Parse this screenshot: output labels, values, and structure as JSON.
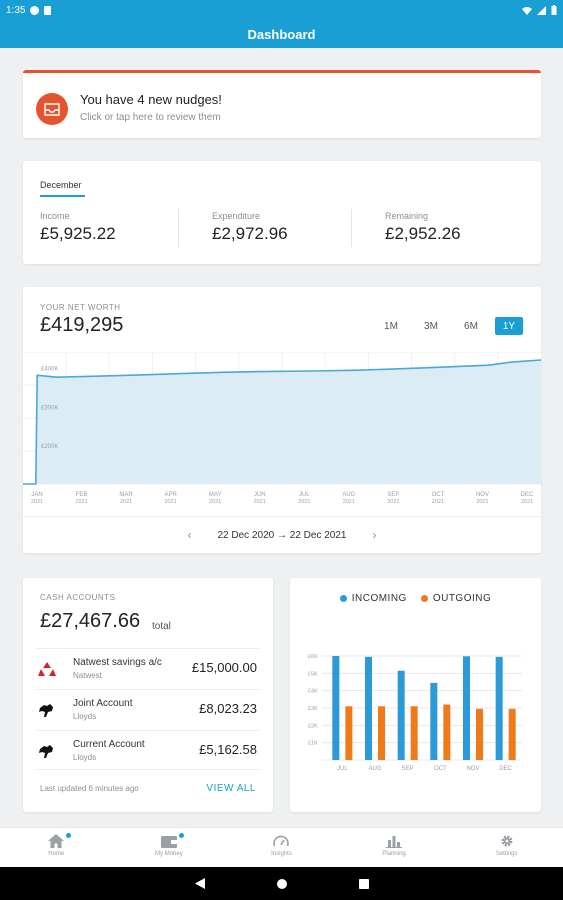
{
  "statusbar": {
    "time": "1:35"
  },
  "appbar": {
    "title": "Dashboard"
  },
  "nudges": {
    "title": "You have 4 new nudges!",
    "subtitle": "Click or tap here to review them",
    "icon": "inbox-icon"
  },
  "month_summary": {
    "tab": "December",
    "income": {
      "label": "Income",
      "value": "£5,925.22"
    },
    "expenditure": {
      "label": "Expenditure",
      "value": "£2,972.96"
    },
    "remaining": {
      "label": "Remaining",
      "value": "£2,952.26"
    }
  },
  "net_worth": {
    "label": "YOUR NET WORTH",
    "value": "£419,295",
    "ranges": [
      "1M",
      "3M",
      "6M",
      "1Y"
    ],
    "active_range": "1Y",
    "period": "22 Dec 2020 → 22 Dec 2021",
    "chart_data": {
      "type": "area",
      "y_ticks": [
        "£400K",
        "£300K",
        "£200K"
      ],
      "x_ticks": [
        {
          "m": "JAN",
          "y": "2021"
        },
        {
          "m": "FEB",
          "y": "2021"
        },
        {
          "m": "MAR",
          "y": "2021"
        },
        {
          "m": "APR",
          "y": "2021"
        },
        {
          "m": "MAY",
          "y": "2021"
        },
        {
          "m": "JUN",
          "y": "2021"
        },
        {
          "m": "JUL",
          "y": "2021"
        },
        {
          "m": "AUG",
          "y": "2021"
        },
        {
          "m": "SEP",
          "y": "2021"
        },
        {
          "m": "OCT",
          "y": "2021"
        },
        {
          "m": "NOV",
          "y": "2021"
        },
        {
          "m": "DEC",
          "y": "2021"
        }
      ],
      "x": [
        "2020-12-22",
        "2020-12-31",
        "2021-01-01",
        "2021-01-15",
        "2021-02-15",
        "2021-03-15",
        "2021-04-15",
        "2021-05-15",
        "2021-06-15",
        "2021-07-15",
        "2021-08-15",
        "2021-09-15",
        "2021-10-15",
        "2021-11-15",
        "2021-12-01",
        "2021-12-22"
      ],
      "values": [
        100000,
        100000,
        380000,
        375000,
        378000,
        381000,
        385000,
        388000,
        390000,
        391000,
        393000,
        397000,
        401000,
        406000,
        414000,
        419295
      ],
      "ylim": [
        100000,
        440000
      ],
      "color": "#4aa8d8",
      "fill": "#dcecf5"
    }
  },
  "cash_accounts": {
    "label": "CASH ACCOUNTS",
    "total": "£27,467.66",
    "total_suffix": "total",
    "accounts": [
      {
        "name": "Natwest savings a/c",
        "bank": "Natwest",
        "amount": "£15,000.00",
        "logo": "natwest-logo-icon"
      },
      {
        "name": "Joint Account",
        "bank": "Lloyds",
        "amount": "£8,023.23",
        "logo": "lloyds-horse-icon"
      },
      {
        "name": "Current Account",
        "bank": "Lloyds",
        "amount": "£5,162.58",
        "logo": "lloyds-horse-icon"
      }
    ],
    "updated": "Last updated 6 minutes ago",
    "view_all": "VIEW ALL"
  },
  "in_out": {
    "chart_data": {
      "type": "bar",
      "categories": [
        "JUL",
        "AUG",
        "SEP",
        "OCT",
        "NOV",
        "DEC"
      ],
      "y_ticks": [
        "£6K",
        "£5K",
        "£4K",
        "£3K",
        "£2K",
        "£1K"
      ],
      "ylim": [
        0,
        6000
      ],
      "series": [
        {
          "name": "INCOMING",
          "color": "#2b9ad6",
          "values": [
            6000,
            5950,
            5150,
            4450,
            5980,
            5950
          ]
        },
        {
          "name": "OUTGOING",
          "color": "#ef7a1a",
          "values": [
            3100,
            3100,
            3100,
            3200,
            2950,
            2950
          ]
        }
      ]
    }
  },
  "bottom_nav": [
    {
      "label": "Home",
      "icon": "home-icon",
      "badge": true
    },
    {
      "label": "My Money",
      "icon": "wallet-icon",
      "badge": true
    },
    {
      "label": "Insights",
      "icon": "gauge-icon",
      "badge": false
    },
    {
      "label": "Planning",
      "icon": "bar-chart-icon",
      "badge": false
    },
    {
      "label": "Settings",
      "icon": "gear-icon",
      "badge": false
    }
  ]
}
